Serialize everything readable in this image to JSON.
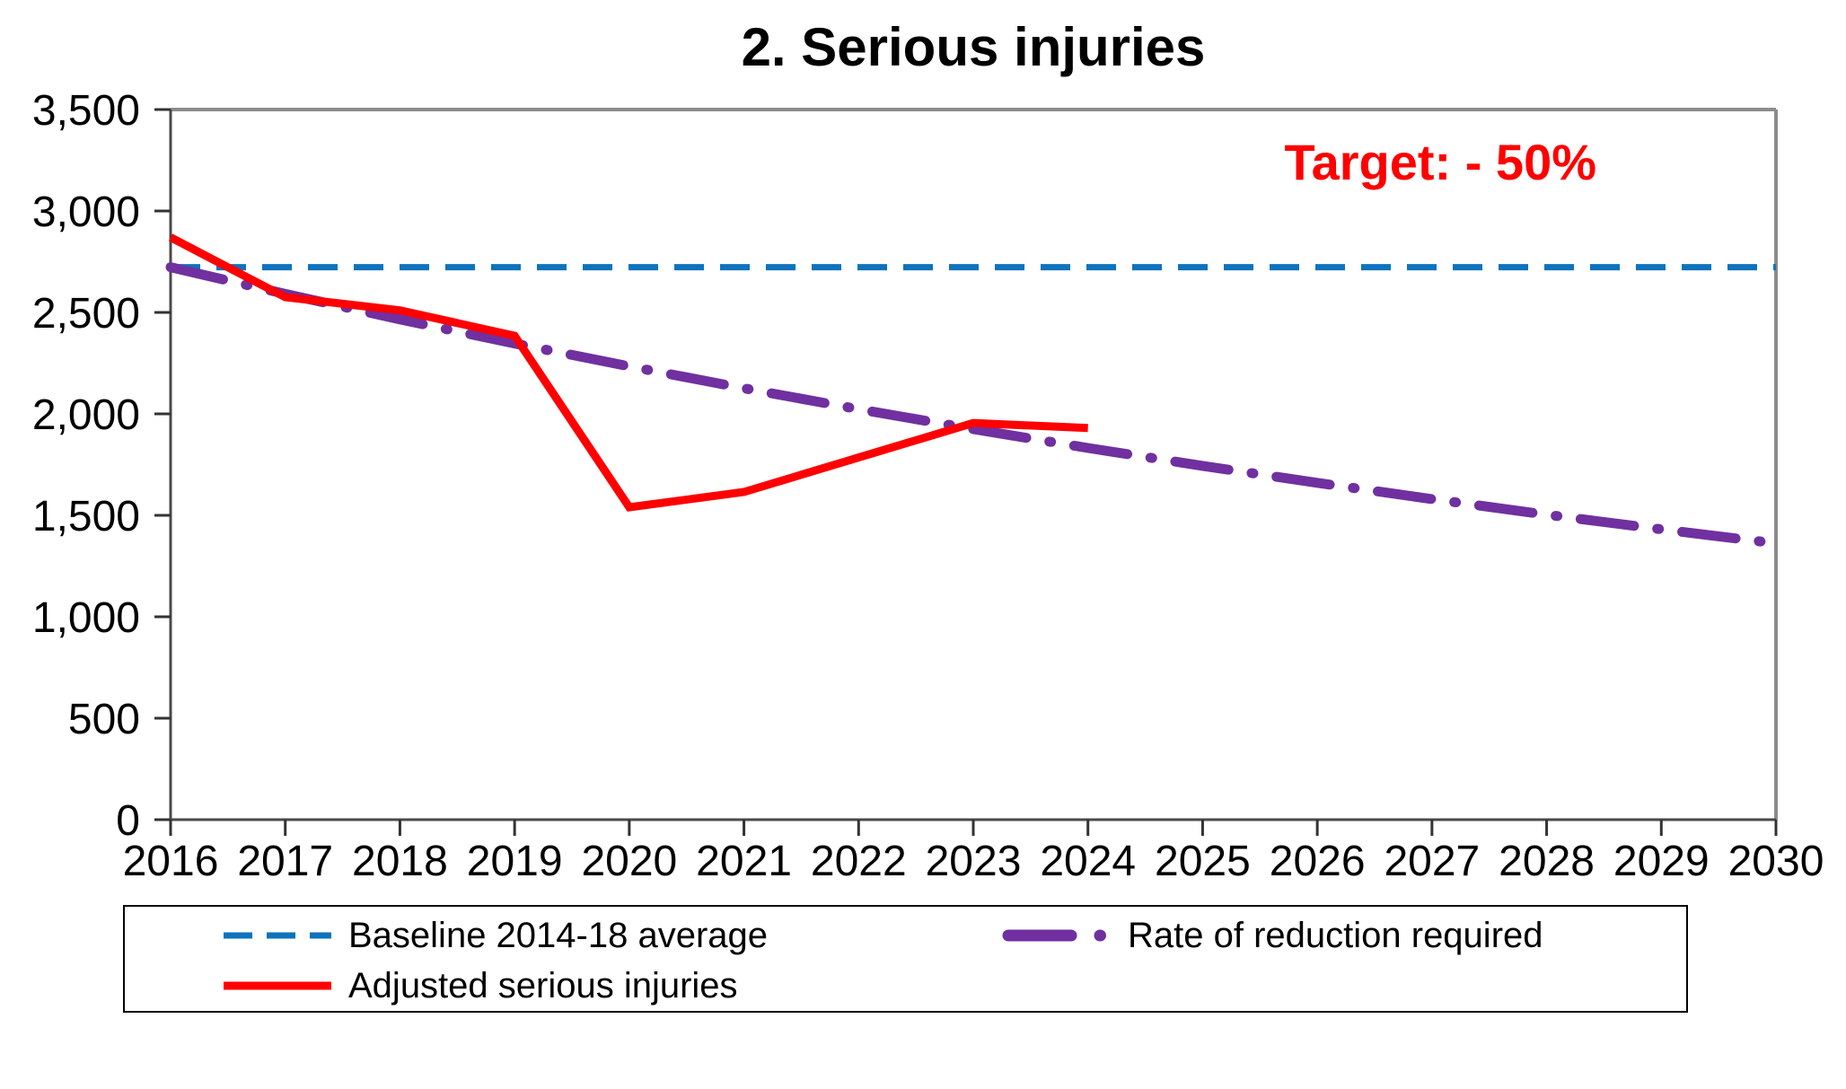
{
  "chart_data": {
    "type": "line",
    "title": "2. Serious injuries",
    "annotation": {
      "text": "Target: - 50%",
      "color": "#ff0000"
    },
    "x_axis": {
      "categories": [
        "2016",
        "2017",
        "2018",
        "2019",
        "2020",
        "2021",
        "2022",
        "2023",
        "2024",
        "2025",
        "2026",
        "2027",
        "2028",
        "2029",
        "2030"
      ]
    },
    "y_axis": {
      "min": 0,
      "max": 3500,
      "tick_step": 500,
      "tick_labels": [
        "0",
        "500",
        "1,000",
        "1,500",
        "2,000",
        "2,500",
        "3,000",
        "3,500"
      ]
    },
    "grid": "off",
    "legend_position": "bottom",
    "series": [
      {
        "name": "Baseline 2014-18 average",
        "color": "#0d73bd",
        "style": "dashed",
        "width": 7,
        "values": [
          2723,
          2723,
          2723,
          2723,
          2723,
          2723,
          2723,
          2723,
          2723,
          2723,
          2723,
          2723,
          2723,
          2723,
          2723
        ]
      },
      {
        "name": "Rate of reduction required",
        "color": "#7030a0",
        "style": "dashdot",
        "width": 11,
        "values": [
          2723,
          2591,
          2466,
          2347,
          2234,
          2126,
          2023,
          1925,
          1832,
          1744,
          1660,
          1580,
          1503,
          1431,
          1362
        ]
      },
      {
        "name": "Adjusted serious injuries",
        "color": "#ff0000",
        "style": "solid",
        "width": 9,
        "values": [
          2870,
          2575,
          2510,
          2385,
          1540,
          1615,
          1785,
          1955,
          1930,
          null,
          null,
          null,
          null,
          null,
          null
        ]
      }
    ],
    "frame_color": "#8c8c8c",
    "axis_color": "#4a4a4a",
    "tick_color": "#333333"
  }
}
